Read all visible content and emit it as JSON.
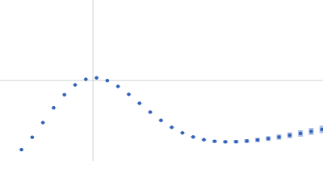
{
  "chart_data": {
    "type": "scatter",
    "x": [
      0.4,
      0.6,
      0.8,
      1.0,
      1.2,
      1.4,
      1.6,
      1.8,
      2.0,
      2.2,
      2.4,
      2.6,
      2.8,
      3.0,
      3.2,
      3.4,
      3.6,
      3.8,
      4.0,
      4.2,
      4.4,
      4.6,
      4.8,
      5.0,
      5.2,
      5.4,
      5.6,
      5.8,
      6.0
    ],
    "series": [
      {
        "color": "#3262b8",
        "error_color": "#a9bfe8",
        "values": [
          0.154,
          0.324,
          0.525,
          0.729,
          0.908,
          1.043,
          1.121,
          1.14,
          1.103,
          1.023,
          0.914,
          0.791,
          0.669,
          0.556,
          0.46,
          0.384,
          0.328,
          0.29,
          0.269,
          0.261,
          0.263,
          0.272,
          0.287,
          0.306,
          0.327,
          0.351,
          0.376,
          0.404,
          0.432
        ],
        "errors": [
          0.004,
          0.004,
          0.004,
          0.004,
          0.004,
          0.004,
          0.005,
          0.005,
          0.005,
          0.006,
          0.006,
          0.007,
          0.008,
          0.009,
          0.01,
          0.011,
          0.013,
          0.015,
          0.017,
          0.02,
          0.023,
          0.026,
          0.03,
          0.033,
          0.036,
          0.04,
          0.044,
          0.048,
          0.052
        ]
      }
    ],
    "xlim": [
      0,
      6.02
    ],
    "ylim": [
      0,
      2.21
    ],
    "crosshair": [
      1.732,
      1.104
    ],
    "crosshair_color": "#d0d0d0"
  }
}
